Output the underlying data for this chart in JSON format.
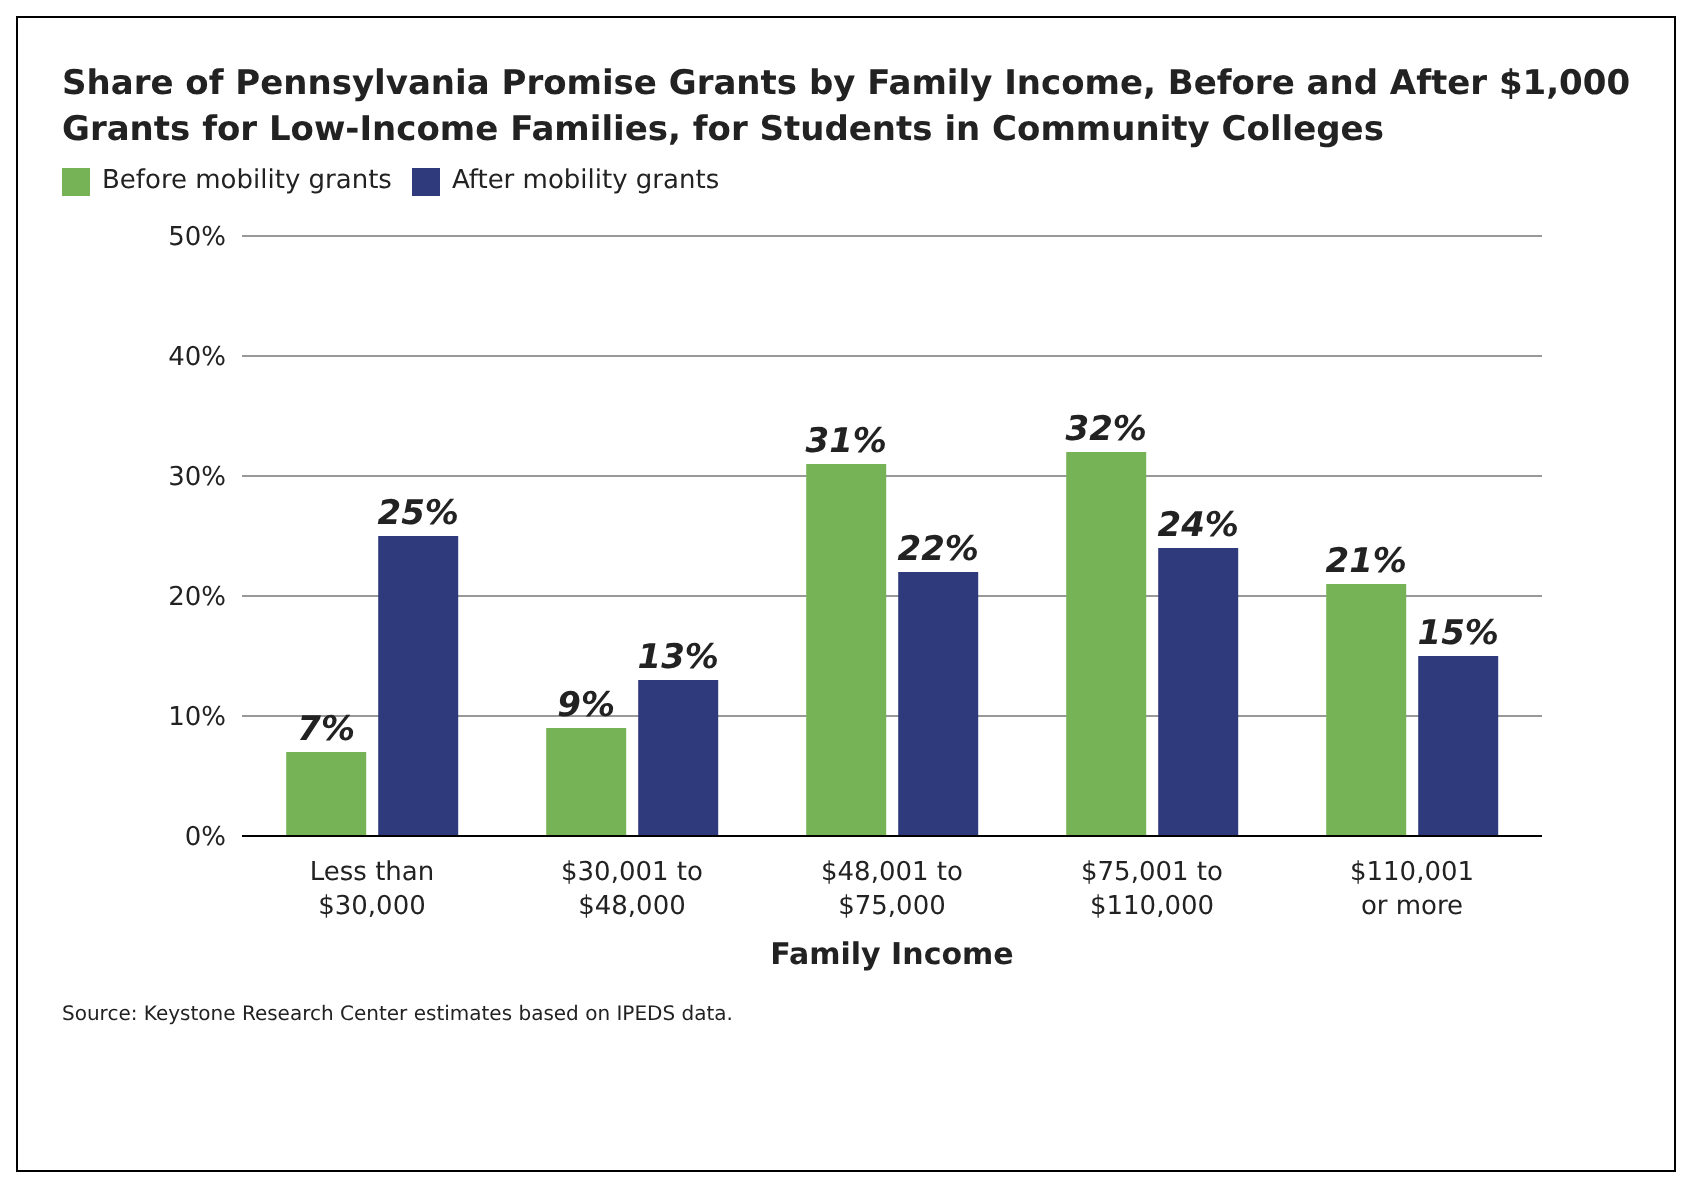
{
  "chart_data": {
    "type": "bar",
    "title": "Share of Pennsylvania Promise Grants by Family Income, Before and After $1,000 Grants for Low-Income Families, for Students in Community Colleges",
    "xlabel": "Family Income",
    "categories": [
      "Less than\n$30,000",
      "$30,001 to\n$48,000",
      "$48,001 to\n$75,000",
      "$75,001 to\n$110,000",
      "$110,001\nor more"
    ],
    "series": [
      {
        "name": "Before mobility grants",
        "color": "#76b356",
        "values": [
          7,
          9,
          31,
          32,
          21
        ],
        "value_labels": [
          "7%",
          "9%",
          "31%",
          "32%",
          "21%"
        ]
      },
      {
        "name": "After mobility grants",
        "color": "#2e3a7c",
        "values": [
          25,
          13,
          22,
          24,
          15
        ],
        "value_labels": [
          "25%",
          "13%",
          "22%",
          "24%",
          "15%"
        ]
      }
    ],
    "ylim": [
      0,
      50
    ],
    "yticks": [
      {
        "value": 0,
        "label": "0%"
      },
      {
        "value": 10,
        "label": "10%"
      },
      {
        "value": 20,
        "label": "20%"
      },
      {
        "value": 30,
        "label": "30%"
      },
      {
        "value": 40,
        "label": "40%"
      },
      {
        "value": 50,
        "label": "50%"
      }
    ],
    "grid": "y",
    "legend": "top left",
    "annotations": [
      "Source: Keystone Research Center estimates based on IPEDS data."
    ]
  }
}
